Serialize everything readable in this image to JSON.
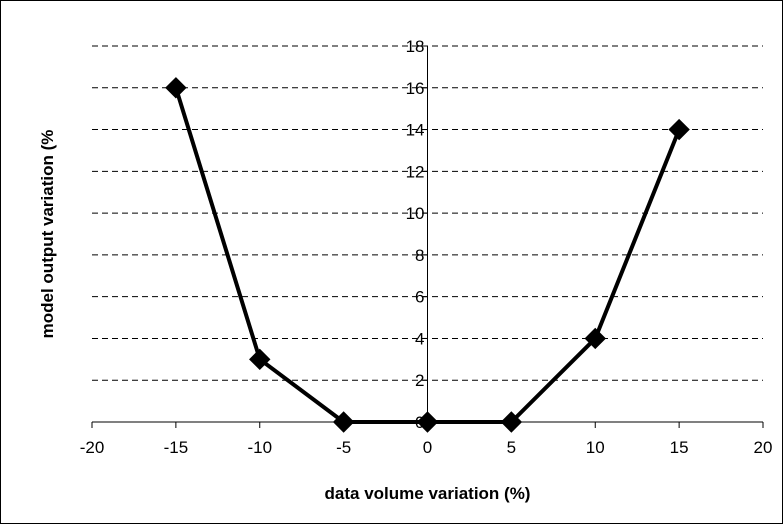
{
  "chart_data": {
    "type": "line",
    "title": "",
    "xlabel": "data volume variation (%)",
    "ylabel": "model output variation (%",
    "xlim": [
      -20,
      20
    ],
    "ylim": [
      0,
      18
    ],
    "x_ticks": [
      -20,
      -15,
      -10,
      -5,
      0,
      5,
      10,
      15,
      20
    ],
    "y_ticks": [
      0,
      2,
      4,
      6,
      8,
      10,
      12,
      14,
      16,
      18
    ],
    "grid": "horizontal dashed",
    "legend": "none",
    "series": [
      {
        "x": [
          -15,
          -10,
          -5,
          0,
          5,
          10,
          15
        ],
        "y": [
          16,
          3,
          0,
          0,
          0,
          4,
          14
        ],
        "marker": "diamond",
        "color": "#000000"
      }
    ]
  }
}
